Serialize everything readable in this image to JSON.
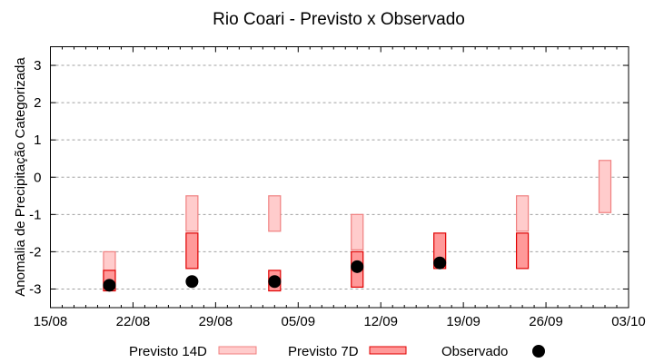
{
  "chart_data": {
    "type": "bar",
    "subtype": "floating-range-bars-with-points",
    "title": "Rio Coari - Previsto x Observado",
    "xlabel": "",
    "ylabel": "Anomalia de Precipitação Categorizada",
    "x_ticks": [
      "15/08",
      "22/08",
      "29/08",
      "05/09",
      "12/09",
      "19/09",
      "26/09",
      "03/10"
    ],
    "x_range": [
      "15/08",
      "03/10"
    ],
    "y_ticks": [
      3,
      2,
      1,
      0,
      -1,
      -2,
      -3
    ],
    "ylim": [
      -3.5,
      3.5
    ],
    "grid": {
      "horizontal": true,
      "vertical": false,
      "style": "dotted"
    },
    "legend_position": "bottom",
    "categories": [
      "20/08",
      "27/08",
      "03/09",
      "10/09",
      "17/09",
      "24/09",
      "01/10"
    ],
    "series": [
      {
        "name": "Previsto 14D",
        "kind": "range",
        "fill": "#ffcccc",
        "stroke": "#f08080",
        "values": [
          [
            -2.0,
            -3.0
          ],
          [
            -0.5,
            -1.45
          ],
          [
            -0.5,
            -1.45
          ],
          [
            -1.0,
            -1.95
          ],
          null,
          [
            -0.5,
            -1.45
          ],
          [
            0.45,
            -0.95
          ]
        ]
      },
      {
        "name": "Previsto 7D",
        "kind": "range",
        "fill": "#ff9999",
        "stroke": "#e00000",
        "values": [
          [
            -2.5,
            -3.05
          ],
          [
            -1.5,
            -2.45
          ],
          [
            -2.5,
            -3.05
          ],
          [
            -2.0,
            -2.95
          ],
          [
            -1.5,
            -2.45
          ],
          [
            -1.5,
            -2.45
          ],
          null
        ]
      },
      {
        "name": "Observado",
        "kind": "point",
        "color": "#000000",
        "values": [
          -2.9,
          -2.8,
          -2.8,
          -2.4,
          -2.3,
          null,
          null
        ]
      }
    ]
  },
  "legend": {
    "items": [
      {
        "label": "Previsto 14D"
      },
      {
        "label": "Previsto 7D"
      },
      {
        "label": "Observado"
      }
    ]
  }
}
